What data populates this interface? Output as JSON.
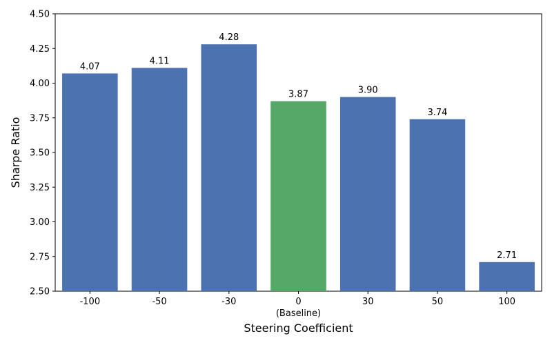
{
  "chart_data": {
    "type": "bar",
    "title": "",
    "xlabel": "Steering Coefficient",
    "ylabel": "Sharpe Ratio",
    "categories": [
      "-100",
      "-50",
      "-30",
      "0",
      "30",
      "50",
      "100"
    ],
    "category_sublabels": [
      "",
      "",
      "",
      "(Baseline)",
      "",
      "",
      ""
    ],
    "values": [
      4.07,
      4.11,
      4.28,
      3.87,
      3.9,
      3.74,
      2.71
    ],
    "value_labels": [
      "4.07",
      "4.11",
      "4.28",
      "3.87",
      "3.90",
      "3.74",
      "2.71"
    ],
    "highlight_index": 3,
    "ylim": [
      2.5,
      4.5
    ],
    "yticks": [
      2.5,
      2.75,
      3.0,
      3.25,
      3.5,
      3.75,
      4.0,
      4.25,
      4.5
    ],
    "ytick_labels": [
      "2.50",
      "2.75",
      "3.00",
      "3.25",
      "3.50",
      "3.75",
      "4.00",
      "4.25",
      "4.50"
    ],
    "grid": false,
    "colors": {
      "bar": "#4c72b0",
      "baseline_bar": "#55a868",
      "axis": "#000000"
    }
  }
}
